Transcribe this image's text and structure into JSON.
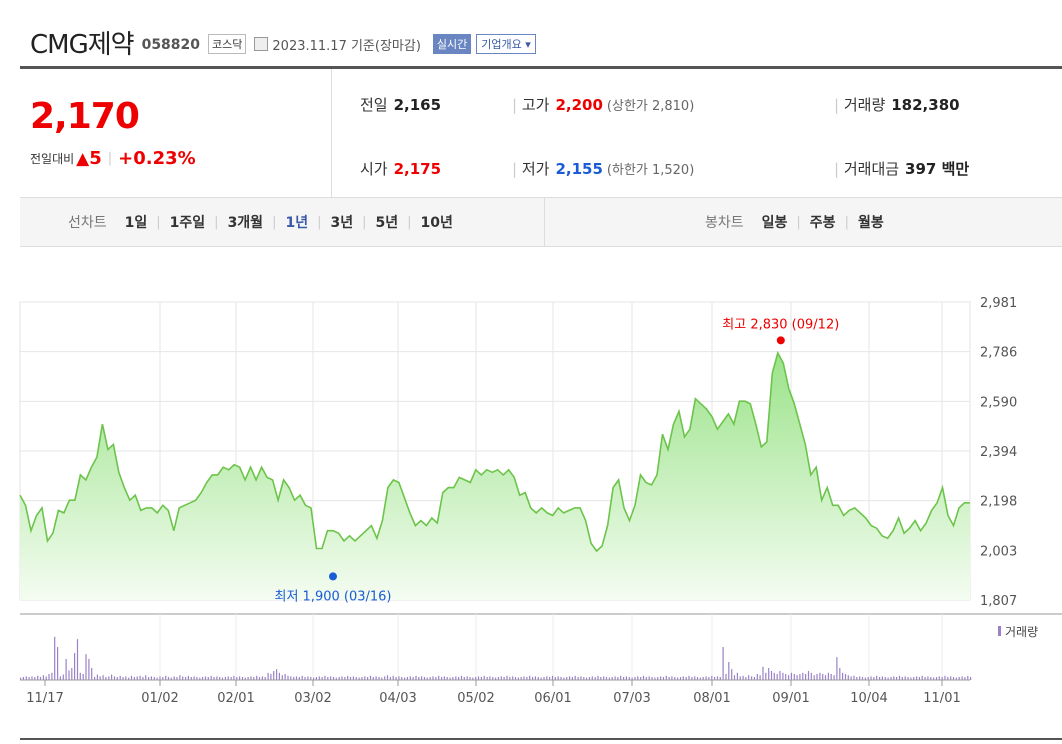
{
  "header": {
    "name": "CMG제약",
    "code": "058820",
    "market": "코스닥",
    "date": "2023.11.17 기준(장마감)",
    "realtime_label": "실시간",
    "company_label": "기업개요 ▾"
  },
  "quote": {
    "price": "2,170",
    "change_label": "전일대비",
    "change_arrow": "▲",
    "change": "5",
    "change_pct": "+0.23%",
    "prev_label": "전일",
    "prev": "2,165",
    "open_label": "시가",
    "open": "2,175",
    "high_label": "고가",
    "high": "2,200",
    "upper_limit": "(상한가 2,810)",
    "low_label": "저가",
    "low": "2,155",
    "lower_limit": "(하한가 1,520)",
    "volume_label": "거래량",
    "volume": "182,380",
    "amount_label": "거래대금",
    "amount": "397 백만"
  },
  "tabs": {
    "line_label": "선차트",
    "line_items": [
      "1일",
      "1주일",
      "3개월",
      "1년",
      "3년",
      "5년",
      "10년"
    ],
    "active": "1년",
    "candle_label": "봉차트",
    "candle_items": [
      "일봉",
      "주봉",
      "월봉"
    ]
  },
  "chart_data": {
    "type": "area",
    "y_ticks": [
      "2,981",
      "2,786",
      "2,590",
      "2,394",
      "2,198",
      "2,003",
      "1,807"
    ],
    "ylim": [
      1807,
      2981
    ],
    "x_ticks": [
      "11/17",
      "01/02",
      "02/01",
      "03/02",
      "04/03",
      "05/02",
      "06/01",
      "07/03",
      "08/01",
      "09/01",
      "10/04",
      "11/01"
    ],
    "high_annotation": "최고 2,830 (09/12)",
    "low_annotation": "최저 1,900 (03/16)",
    "high_value": 2830,
    "low_value": 1900,
    "volume_label": "거래량",
    "series": [
      {
        "values": [
          2220,
          2180,
          2080,
          2140,
          2170,
          2040,
          2070,
          2160,
          2150,
          2200,
          2200,
          2300,
          2280,
          2330,
          2370,
          2500,
          2400,
          2420,
          2310,
          2250,
          2200,
          2220,
          2160,
          2170,
          2170,
          2150,
          2180,
          2160,
          2080,
          2170,
          2180,
          2190,
          2200,
          2230,
          2270,
          2300,
          2300,
          2330,
          2320,
          2340,
          2330,
          2280,
          2330,
          2280,
          2330,
          2290,
          2280,
          2200,
          2280,
          2250,
          2200,
          2220,
          2180,
          2170,
          2010,
          2010,
          2080,
          2080,
          2070,
          2040,
          2060,
          2040,
          2060,
          2080,
          2100,
          2050,
          2120,
          2250,
          2280,
          2270,
          2210,
          2150,
          2100,
          2120,
          2100,
          2130,
          2110,
          2230,
          2250,
          2250,
          2290,
          2280,
          2270,
          2320,
          2300,
          2320,
          2310,
          2320,
          2300,
          2320,
          2290,
          2220,
          2230,
          2170,
          2150,
          2170,
          2150,
          2140,
          2170,
          2150,
          2160,
          2170,
          2170,
          2120,
          2030,
          2000,
          2020,
          2100,
          2250,
          2280,
          2170,
          2120,
          2180,
          2300,
          2270,
          2260,
          2300,
          2460,
          2400,
          2500,
          2550,
          2450,
          2480,
          2600,
          2580,
          2560,
          2530,
          2480,
          2510,
          2540,
          2500,
          2590,
          2590,
          2580,
          2500,
          2410,
          2430,
          2700,
          2780,
          2740,
          2640,
          2580,
          2500,
          2420,
          2300,
          2330,
          2200,
          2250,
          2180,
          2180,
          2140,
          2160,
          2170,
          2150,
          2130,
          2100,
          2090,
          2060,
          2050,
          2080,
          2130,
          2070,
          2090,
          2120,
          2080,
          2110,
          2160,
          2190,
          2250,
          2140,
          2100,
          2170,
          2190,
          2190
        ]
      }
    ],
    "volume": [
      0.04,
      0.05,
      0.06,
      0.05,
      0.06,
      0.05,
      0.07,
      0.05,
      0.08,
      0.06,
      0.1,
      0.12,
      0.72,
      0.55,
      0.06,
      0.09,
      0.35,
      0.16,
      0.2,
      0.45,
      0.68,
      0.12,
      0.1,
      0.43,
      0.35,
      0.2,
      0.05,
      0.09,
      0.06,
      0.08,
      0.05,
      0.06,
      0.09,
      0.06,
      0.05,
      0.07,
      0.05,
      0.06,
      0.04,
      0.07,
      0.05,
      0.06,
      0.07,
      0.05,
      0.08,
      0.05,
      0.06,
      0.05,
      0.04,
      0.06,
      0.05,
      0.07,
      0.05,
      0.04,
      0.06,
      0.05,
      0.08,
      0.06,
      0.05,
      0.07,
      0.05,
      0.06,
      0.05,
      0.04,
      0.05,
      0.06,
      0.05,
      0.07,
      0.05,
      0.06,
      0.05,
      0.04,
      0.05,
      0.06,
      0.05,
      0.07,
      0.05,
      0.06,
      0.05,
      0.04,
      0.05,
      0.06,
      0.05,
      0.07,
      0.05,
      0.06,
      0.05,
      0.12,
      0.1,
      0.15,
      0.18,
      0.12,
      0.08,
      0.1,
      0.07,
      0.06,
      0.05,
      0.06,
      0.05,
      0.07,
      0.05,
      0.06,
      0.05,
      0.04,
      0.05,
      0.06,
      0.05,
      0.07,
      0.05,
      0.06,
      0.05,
      0.04,
      0.05,
      0.06,
      0.05,
      0.07,
      0.05,
      0.06,
      0.05,
      0.04,
      0.05,
      0.06,
      0.05,
      0.07,
      0.05,
      0.06,
      0.05,
      0.04,
      0.06,
      0.08,
      0.05,
      0.07,
      0.05,
      0.06,
      0.05,
      0.04,
      0.05,
      0.06,
      0.05,
      0.07,
      0.05,
      0.06,
      0.05,
      0.04,
      0.05,
      0.06,
      0.05,
      0.07,
      0.05,
      0.06,
      0.05,
      0.04,
      0.05,
      0.06,
      0.05,
      0.07,
      0.05,
      0.06,
      0.05,
      0.04,
      0.05,
      0.06,
      0.05,
      0.07,
      0.05,
      0.06,
      0.05,
      0.04,
      0.05,
      0.06,
      0.05,
      0.07,
      0.05,
      0.06,
      0.05,
      0.04,
      0.05,
      0.06,
      0.05,
      0.07,
      0.05,
      0.06,
      0.05,
      0.04,
      0.05,
      0.06,
      0.05,
      0.07,
      0.05,
      0.06,
      0.05,
      0.04,
      0.05,
      0.06,
      0.05,
      0.07,
      0.05,
      0.06,
      0.05,
      0.04,
      0.05,
      0.06,
      0.05,
      0.07,
      0.05,
      0.06,
      0.05,
      0.04,
      0.05,
      0.06,
      0.05,
      0.07,
      0.05,
      0.06,
      0.05,
      0.04,
      0.05,
      0.06,
      0.05,
      0.07,
      0.05,
      0.06,
      0.05,
      0.04,
      0.05,
      0.06,
      0.05,
      0.07,
      0.05,
      0.06,
      0.05,
      0.04,
      0.05,
      0.06,
      0.05,
      0.07,
      0.05,
      0.06,
      0.05,
      0.04,
      0.05,
      0.06,
      0.05,
      0.07,
      0.05,
      0.06,
      0.05,
      0.55,
      0.1,
      0.3,
      0.18,
      0.08,
      0.12,
      0.06,
      0.07,
      0.05,
      0.08,
      0.06,
      0.05,
      0.1,
      0.08,
      0.22,
      0.12,
      0.2,
      0.15,
      0.12,
      0.1,
      0.15,
      0.12,
      0.1,
      0.08,
      0.12,
      0.1,
      0.08,
      0.1,
      0.12,
      0.1,
      0.15,
      0.12,
      0.08,
      0.1,
      0.12,
      0.1,
      0.08,
      0.12,
      0.1,
      0.08,
      0.38,
      0.2,
      0.12,
      0.1,
      0.08,
      0.06,
      0.07,
      0.05,
      0.06,
      0.05,
      0.04,
      0.05,
      0.06,
      0.05,
      0.07,
      0.05,
      0.06,
      0.05,
      0.04,
      0.05,
      0.06,
      0.05,
      0.07,
      0.05,
      0.06,
      0.05,
      0.04,
      0.05,
      0.06,
      0.05,
      0.07,
      0.05,
      0.06,
      0.05,
      0.04,
      0.05,
      0.06,
      0.05,
      0.07,
      0.05,
      0.06,
      0.05,
      0.04,
      0.05,
      0.06,
      0.05,
      0.07,
      0.05
    ]
  }
}
